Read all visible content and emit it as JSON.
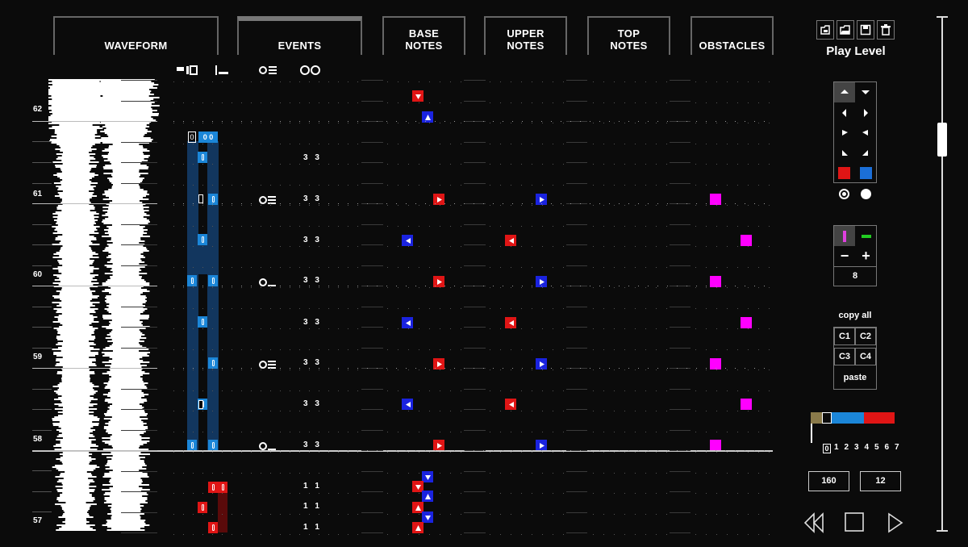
{
  "headers": {
    "waveform": "WAVEFORM",
    "events": "EVENTS",
    "base_notes_1": "BASE",
    "base_notes_2": "NOTES",
    "upper_notes_1": "UPPER",
    "upper_notes_2": "NOTES",
    "top_notes_1": "TOP",
    "top_notes_2": "NOTES",
    "obstacles": "OBSTACLES"
  },
  "beat_labels": [
    "62",
    "61",
    "60",
    "59",
    "58",
    "57"
  ],
  "event_values": [
    "3 3",
    "3 3",
    "3 3",
    "3 3",
    "3 3",
    "3 3",
    "3 3",
    "3 3",
    "1 1",
    "1 1",
    "1 1"
  ],
  "light_labels": [
    "0",
    "0",
    "0"
  ],
  "side_panel": {
    "play_level": "Play Level",
    "copy_all": "copy all",
    "c1": "C1",
    "c2": "C2",
    "c3": "C3",
    "c4": "C4",
    "paste": "paste",
    "minus": "−",
    "plus": "+",
    "wall_count": "8",
    "bpm": "160",
    "offset": "12",
    "layer_numbers": [
      "1",
      "2",
      "3",
      "4",
      "5",
      "6",
      "7"
    ],
    "layer_zero": "0"
  },
  "colors": {
    "red_note": "#e01515",
    "blue_note": "#1a23e0",
    "obstacle": "#ff00ff",
    "light_blue": "#1b86d8",
    "track_bg": "#0b0b0b"
  },
  "icons": [
    "new-file-icon",
    "open-folder-icon",
    "save-icon",
    "trash-icon",
    "rewind-icon",
    "stop-icon",
    "play-icon"
  ]
}
